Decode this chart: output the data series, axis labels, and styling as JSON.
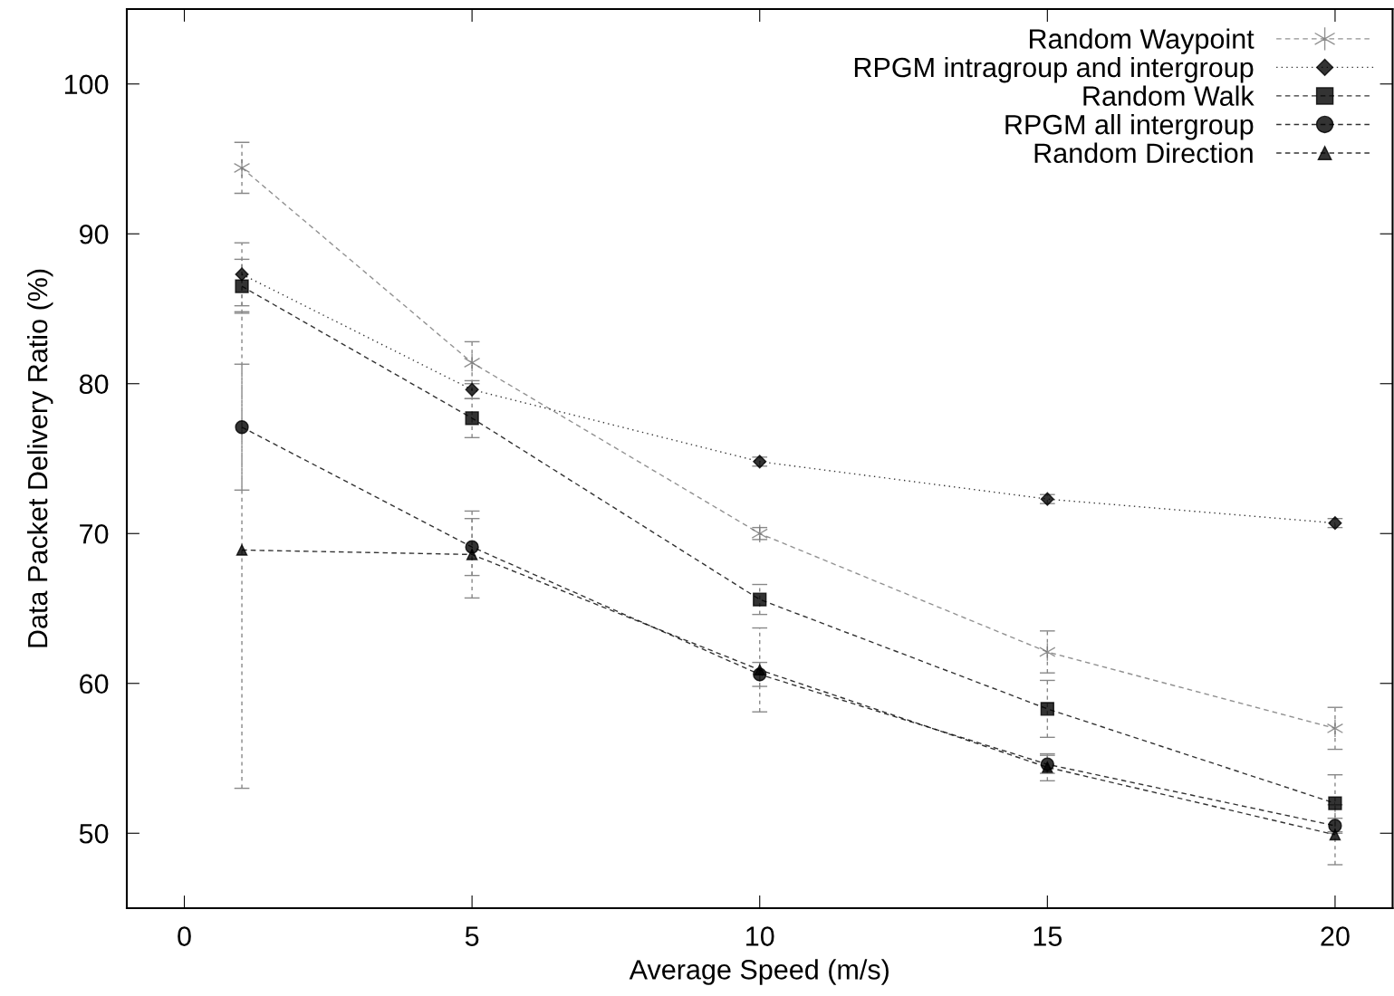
{
  "chart_data": {
    "type": "line",
    "xlabel": "Average Speed (m/s)",
    "ylabel": "Data Packet Delivery Ratio (%)",
    "x": [
      1,
      5,
      10,
      15,
      20
    ],
    "xlim": [
      -1,
      21
    ],
    "xticks": [
      0,
      5,
      10,
      15,
      20
    ],
    "ylim": [
      45,
      105
    ],
    "yticks": [
      50,
      60,
      70,
      80,
      90,
      100
    ],
    "grid": false,
    "legend": "top right",
    "series": [
      {
        "name": "Random Waypoint",
        "color": "#777777",
        "marker": "cross",
        "line_style": "dashed",
        "values": [
          94.4,
          81.4,
          70.0,
          62.1,
          57.0
        ],
        "errors": [
          1.7,
          1.4,
          0.4,
          1.4,
          1.4
        ]
      },
      {
        "name": "RPGM intragroup and intergroup",
        "color": "#000000",
        "marker": "diamond",
        "line_style": "dotted",
        "values": [
          87.3,
          79.6,
          74.8,
          72.3,
          70.7
        ],
        "errors": [
          2.1,
          0.6,
          0.3,
          0.3,
          0.3
        ]
      },
      {
        "name": "Random Walk",
        "color": "#000000",
        "marker": "square",
        "line_style": "dashed",
        "values": [
          86.5,
          77.7,
          65.6,
          58.3,
          52.0
        ],
        "errors": [
          1.8,
          1.3,
          1.0,
          1.9,
          1.9
        ]
      },
      {
        "name": "RPGM all intergroup",
        "color": "#000000",
        "marker": "circle",
        "line_style": "dashed",
        "values": [
          77.1,
          69.1,
          60.6,
          54.6,
          50.5
        ],
        "errors": [
          4.2,
          1.9,
          0.8,
          0.6,
          0.5
        ]
      },
      {
        "name": "Random Direction",
        "color": "#000000",
        "marker": "triangle",
        "line_style": "dashed",
        "values": [
          68.9,
          68.6,
          60.9,
          54.4,
          49.9
        ],
        "errors": [
          15.9,
          2.9,
          2.8,
          0.9,
          2.0
        ]
      }
    ]
  }
}
